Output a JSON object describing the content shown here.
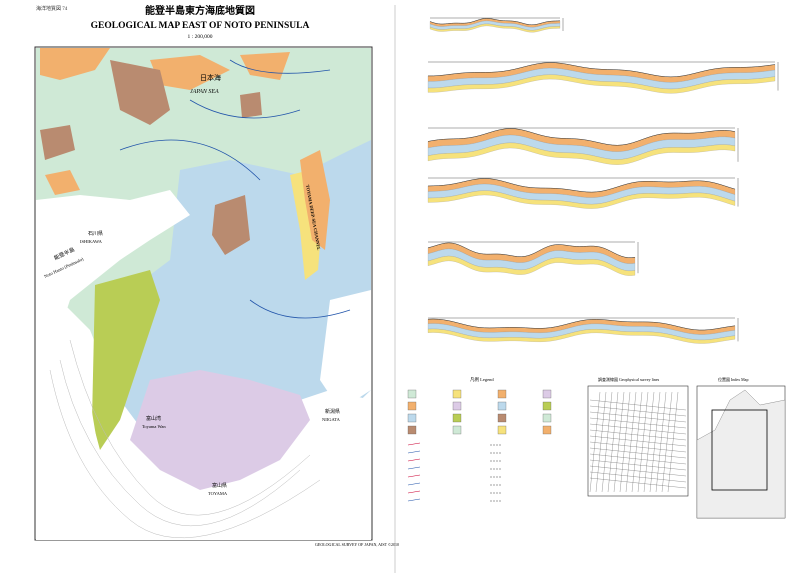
{
  "header": {
    "series_ja": "海洋地質図 74",
    "title_ja": "能登半島東方海底地質図",
    "title_en": "GEOLOGICAL MAP EAST OF NOTO PENINSULA",
    "scale": "1 : 200,000"
  },
  "map": {
    "labels": {
      "sea_ja": "日本海",
      "sea_en": "JAPAN SEA",
      "channel": "TOYAMA DEEP-SEA CHANNEL",
      "pref_ishikawa_ja": "石川県",
      "pref_ishikawa_en": "ISHIKAWA",
      "peninsula_ja": "能登半島",
      "peninsula_en": "Noto Hanto (Peninsula)",
      "bay_ja": "富山湾",
      "bay_en": "Toyama Wan",
      "pref_niigata_ja": "新潟県",
      "pref_niigata_en": "NIIGATA",
      "pref_toyama_ja": "富山県",
      "pref_toyama_en": "TOYAMA"
    }
  },
  "panels": {
    "legend": "凡例 Legend",
    "survey": "調査測線図 Geophysical survey lines",
    "index": "位置図 Index Map"
  },
  "footer": "GEOLOGICAL SURVEY OF JAPAN, AIST ©2010"
}
